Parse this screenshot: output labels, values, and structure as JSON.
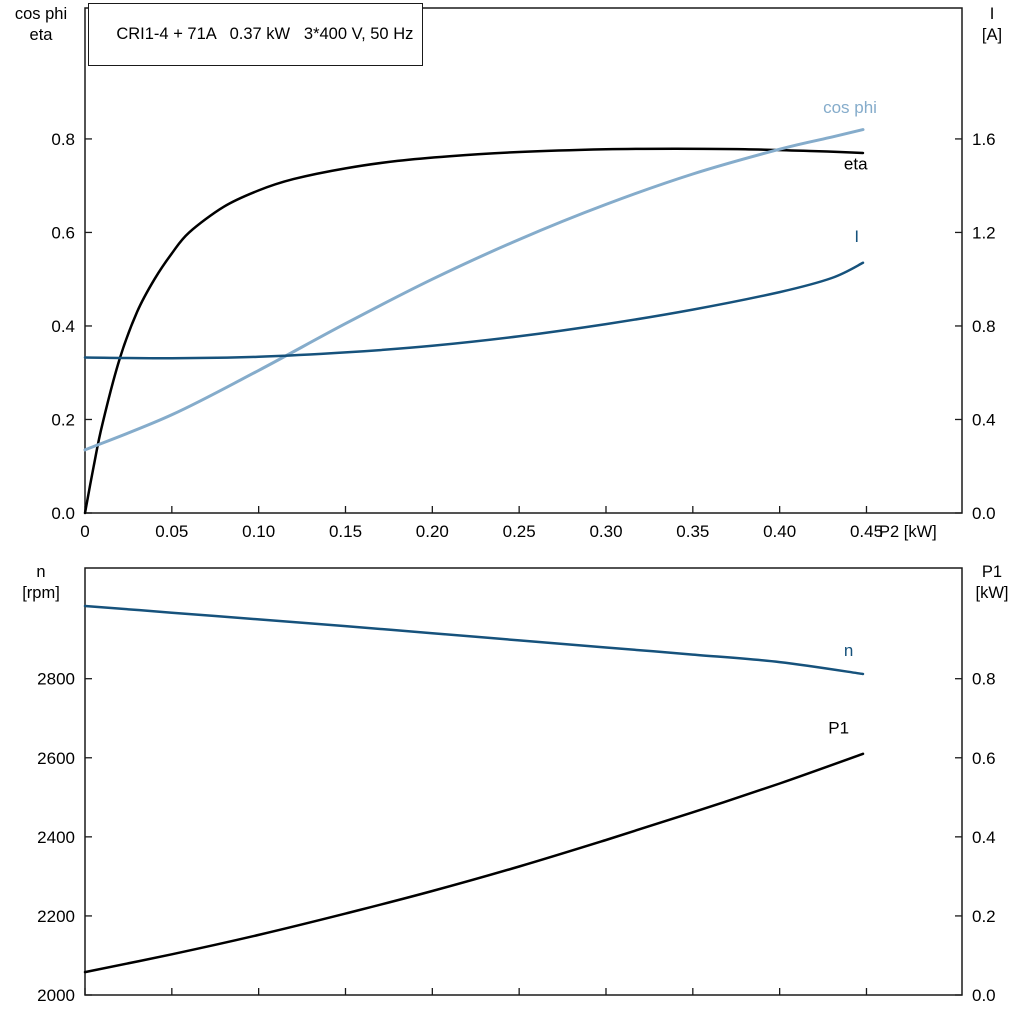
{
  "colors": {
    "black": "#000000",
    "light_blue": "#85accb",
    "dark_blue": "#16527c",
    "axis": "#1a1a1a",
    "background": "#ffffff"
  },
  "chart_data": [
    {
      "type": "line",
      "title": "CRI1-4 + 71A   0.37 kW   3*400 V, 50 Hz",
      "grid": false,
      "x": {
        "label": "P2 [kW]",
        "min": 0,
        "max": 0.505,
        "ticks": [
          0,
          0.05,
          0.1,
          0.15,
          0.2,
          0.25,
          0.3,
          0.35,
          0.4,
          0.45
        ],
        "tick_labels": [
          "0",
          "0.05",
          "0.10",
          "0.15",
          "0.20",
          "0.25",
          "0.30",
          "0.35",
          "0.40",
          "0.45"
        ],
        "show_tick_labels": true
      },
      "y_left": {
        "header": [
          "cos phi",
          "eta"
        ],
        "min": 0,
        "max": 1.08,
        "ticks": [
          0,
          0.2,
          0.4,
          0.6,
          0.8
        ],
        "tick_labels": [
          "0.0",
          "0.2",
          "0.4",
          "0.6",
          "0.8"
        ]
      },
      "y_right": {
        "header": [
          "I",
          "[A]"
        ],
        "min": 0,
        "max": 2.16,
        "ticks": [
          0,
          0.4,
          0.8,
          1.2,
          1.6
        ],
        "tick_labels": [
          "0.0",
          "0.4",
          "0.8",
          "1.2",
          "1.6"
        ]
      },
      "series": [
        {
          "name": "eta",
          "label": "eta",
          "axis": "left",
          "color": "#000000",
          "width": 2.5,
          "label_pos": {
            "x": 0.437,
            "y": 0.735
          },
          "points": [
            [
              0,
              0
            ],
            [
              0.005,
              0.1
            ],
            [
              0.01,
              0.19
            ],
            [
              0.02,
              0.33
            ],
            [
              0.03,
              0.43
            ],
            [
              0.04,
              0.5
            ],
            [
              0.05,
              0.555
            ],
            [
              0.06,
              0.6
            ],
            [
              0.08,
              0.655
            ],
            [
              0.1,
              0.69
            ],
            [
              0.12,
              0.714
            ],
            [
              0.15,
              0.737
            ],
            [
              0.18,
              0.753
            ],
            [
              0.21,
              0.763
            ],
            [
              0.25,
              0.772
            ],
            [
              0.3,
              0.778
            ],
            [
              0.34,
              0.779
            ],
            [
              0.38,
              0.778
            ],
            [
              0.42,
              0.774
            ],
            [
              0.448,
              0.77
            ]
          ]
        },
        {
          "name": "cos_phi",
          "label": "cos phi",
          "axis": "left",
          "color": "#85accb",
          "width": 3,
          "label_pos": {
            "x": 0.425,
            "y": 0.855
          },
          "points": [
            [
              0,
              0.135
            ],
            [
              0.05,
              0.21
            ],
            [
              0.1,
              0.305
            ],
            [
              0.15,
              0.405
            ],
            [
              0.2,
              0.5
            ],
            [
              0.25,
              0.585
            ],
            [
              0.3,
              0.66
            ],
            [
              0.35,
              0.725
            ],
            [
              0.4,
              0.778
            ],
            [
              0.43,
              0.804
            ],
            [
              0.448,
              0.82
            ]
          ]
        },
        {
          "name": "I",
          "label": "I",
          "axis": "right",
          "color": "#16527c",
          "width": 2.5,
          "label_pos": {
            "x": 0.443,
            "y": 1.16
          },
          "points": [
            [
              0,
              0.665
            ],
            [
              0.05,
              0.662
            ],
            [
              0.1,
              0.668
            ],
            [
              0.15,
              0.687
            ],
            [
              0.2,
              0.715
            ],
            [
              0.25,
              0.756
            ],
            [
              0.3,
              0.808
            ],
            [
              0.35,
              0.87
            ],
            [
              0.4,
              0.945
            ],
            [
              0.43,
              1.005
            ],
            [
              0.448,
              1.07
            ]
          ]
        }
      ]
    },
    {
      "type": "line",
      "title": "",
      "grid": false,
      "x": {
        "label": "",
        "min": 0,
        "max": 0.505,
        "ticks": [
          0,
          0.05,
          0.1,
          0.15,
          0.2,
          0.25,
          0.3,
          0.35,
          0.4,
          0.45
        ],
        "tick_labels": [],
        "show_tick_labels": false
      },
      "y_left": {
        "header": [
          "n",
          "[rpm]"
        ],
        "min": 2000,
        "max": 3080,
        "ticks": [
          2000,
          2200,
          2400,
          2600,
          2800
        ],
        "tick_labels": [
          "2000",
          "2200",
          "2400",
          "2600",
          "2800"
        ]
      },
      "y_right": {
        "header": [
          "P1",
          "[kW]"
        ],
        "min": 0,
        "max": 1.08,
        "ticks": [
          0,
          0.2,
          0.4,
          0.6,
          0.8
        ],
        "tick_labels": [
          "0.0",
          "0.2",
          "0.4",
          "0.6",
          "0.8"
        ]
      },
      "series": [
        {
          "name": "n",
          "label": "n",
          "axis": "left",
          "color": "#16527c",
          "width": 2.5,
          "label_pos": {
            "x": 0.437,
            "y": 2858
          },
          "points": [
            [
              0,
              2984
            ],
            [
              0.05,
              2967
            ],
            [
              0.1,
              2950
            ],
            [
              0.15,
              2933
            ],
            [
              0.2,
              2915
            ],
            [
              0.25,
              2897
            ],
            [
              0.3,
              2879
            ],
            [
              0.35,
              2861
            ],
            [
              0.4,
              2842
            ],
            [
              0.448,
              2812
            ]
          ]
        },
        {
          "name": "P1",
          "label": "P1",
          "axis": "right",
          "color": "#000000",
          "width": 2.5,
          "label_pos": {
            "x": 0.428,
            "y": 0.662
          },
          "points": [
            [
              0,
              0.058
            ],
            [
              0.05,
              0.103
            ],
            [
              0.1,
              0.152
            ],
            [
              0.15,
              0.206
            ],
            [
              0.2,
              0.263
            ],
            [
              0.25,
              0.325
            ],
            [
              0.3,
              0.392
            ],
            [
              0.35,
              0.462
            ],
            [
              0.4,
              0.535
            ],
            [
              0.448,
              0.61
            ]
          ]
        }
      ]
    }
  ]
}
